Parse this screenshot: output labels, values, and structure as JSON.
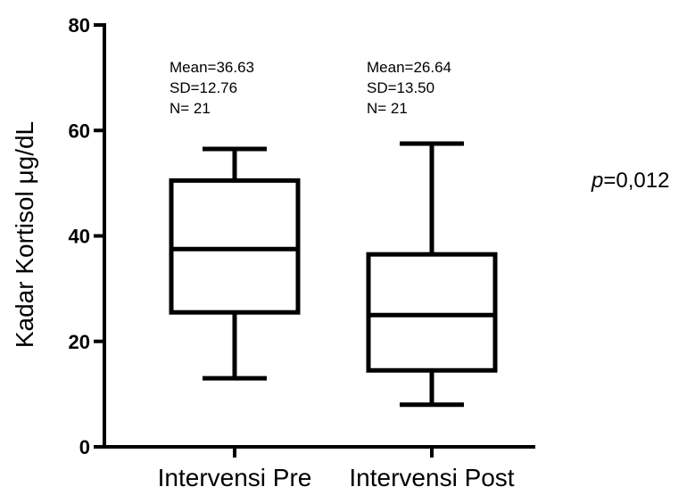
{
  "chart_data": {
    "type": "box",
    "ylabel": "Kadar Kortisol μg/dL",
    "ylim": [
      0,
      80
    ],
    "yticks": [
      0,
      20,
      40,
      60,
      80
    ],
    "categories": [
      "Intervensi Pre",
      "Intervensi Post"
    ],
    "boxes": [
      {
        "name": "Intervensi Pre",
        "min": 13,
        "q1": 25.5,
        "median": 37.5,
        "q3": 50.5,
        "max": 56.5,
        "stats": [
          "Mean=36.63",
          "SD=12.76",
          "N= 21"
        ]
      },
      {
        "name": "Intervensi Post",
        "min": 8,
        "q1": 14.5,
        "median": 25,
        "q3": 36.5,
        "max": 57.5,
        "stats": [
          "Mean=26.64",
          "SD=13.50",
          "N= 21"
        ]
      }
    ],
    "annotation": {
      "italic": "p",
      "rest": "=0,012"
    }
  }
}
